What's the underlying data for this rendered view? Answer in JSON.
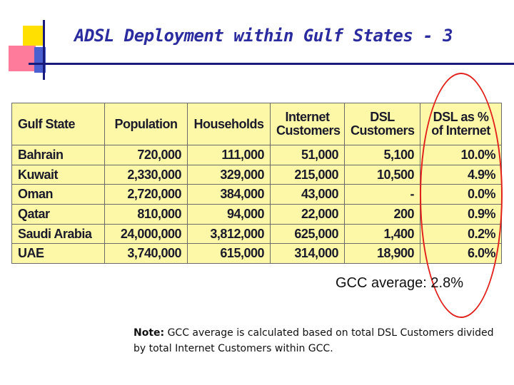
{
  "slide": {
    "title": "ADSL Deployment within Gulf States - 3"
  },
  "table": {
    "headers": {
      "state": "Gulf State",
      "population": "Population",
      "households": "Households",
      "internet_line1": "Internet",
      "internet_line2": "Customers",
      "dsl_line1": "DSL",
      "dsl_line2": "Customers",
      "pct_line1": "DSL as %",
      "pct_line2": "of Internet"
    },
    "rows": [
      {
        "state": "Bahrain",
        "population": "720,000",
        "households": "111,000",
        "internet": "51,000",
        "dsl": "5,100",
        "pct": "10.0%"
      },
      {
        "state": "Kuwait",
        "population": "2,330,000",
        "households": "329,000",
        "internet": "215,000",
        "dsl": "10,500",
        "pct": "4.9%"
      },
      {
        "state": "Oman",
        "population": "2,720,000",
        "households": "384,000",
        "internet": "43,000",
        "dsl": "-",
        "pct": "0.0%"
      },
      {
        "state": "Qatar",
        "population": "810,000",
        "households": "94,000",
        "internet": "22,000",
        "dsl": "200",
        "pct": "0.9%"
      },
      {
        "state": "Saudi Arabia",
        "population": "24,000,000",
        "households": "3,812,000",
        "internet": "625,000",
        "dsl": "1,400",
        "pct": "0.2%"
      },
      {
        "state": "UAE",
        "population": "3,740,000",
        "households": "615,000",
        "internet": "314,000",
        "dsl": "18,900",
        "pct": "6.0%"
      }
    ]
  },
  "gcc_average": "GCC average: 2.8%",
  "note": {
    "label": "Note:",
    "text": "GCC average is calculated based on total DSL Customers divided by total Internet Customers within GCC."
  },
  "colors": {
    "title": "#2b2ba0",
    "table_fill": "#fdf8a8",
    "highlight_circle": "#e2211c"
  }
}
